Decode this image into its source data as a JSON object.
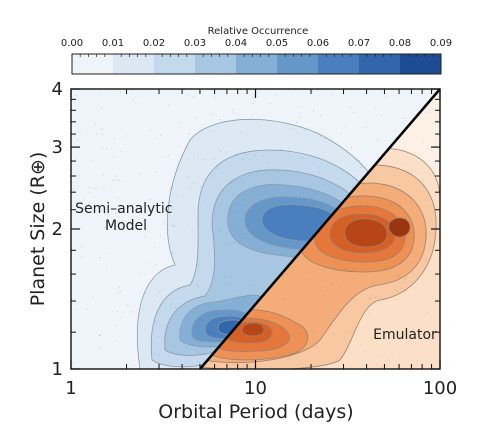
{
  "chart_data": {
    "type": "heatmap",
    "title": "",
    "xlabel": "Orbital Period (days)",
    "ylabel": "Planet Size (R⊕)",
    "xscale": "log",
    "yscale": "log",
    "xlim": [
      1,
      100
    ],
    "ylim": [
      1,
      4
    ],
    "x_ticks": [
      1,
      10,
      100
    ],
    "x_tick_labels": [
      "1",
      "10",
      "100"
    ],
    "y_ticks": [
      1,
      2,
      3,
      4
    ],
    "y_tick_labels": [
      "1",
      "2",
      "3",
      "4"
    ],
    "colorbar": {
      "label": "Relative Occurrence",
      "range": [
        0,
        0.09
      ],
      "ticks": [
        0.0,
        0.01,
        0.02,
        0.03,
        0.04,
        0.05,
        0.06,
        0.07,
        0.08,
        0.09
      ],
      "tick_labels": [
        "0.00",
        "0.01",
        "0.02",
        "0.03",
        "0.04",
        "0.05",
        "0.06",
        "0.07",
        "0.08",
        "0.09"
      ],
      "colors": [
        "#eef4fa",
        "#dbe8f4",
        "#c3d9ec",
        "#a6c6e2",
        "#86afd6",
        "#6697c9",
        "#4a7fbd",
        "#3266ab",
        "#1d4c93"
      ]
    },
    "regions": [
      {
        "name": "Semi–analytic Model",
        "label_lines": [
          "Semi–analytic",
          "Model"
        ],
        "side": "upper-left of diagonal",
        "color_scale": "blue",
        "peaks": [
          {
            "period_days": 25,
            "size_re": 2.25,
            "level": 0.063
          },
          {
            "period_days": 9,
            "size_re": 1.25,
            "level": 0.072
          }
        ]
      },
      {
        "name": "Emulator",
        "label_lines": [
          "Emulator"
        ],
        "side": "lower-right of diagonal",
        "color_scale": "orange",
        "peaks": [
          {
            "period_days": 60,
            "size_re": 2.05,
            "level": 0.088
          },
          {
            "period_days": 8,
            "size_re": 1.25,
            "level": 0.075
          }
        ]
      }
    ],
    "divider": {
      "from": [
        5,
        1
      ],
      "to": [
        100,
        4
      ]
    }
  }
}
